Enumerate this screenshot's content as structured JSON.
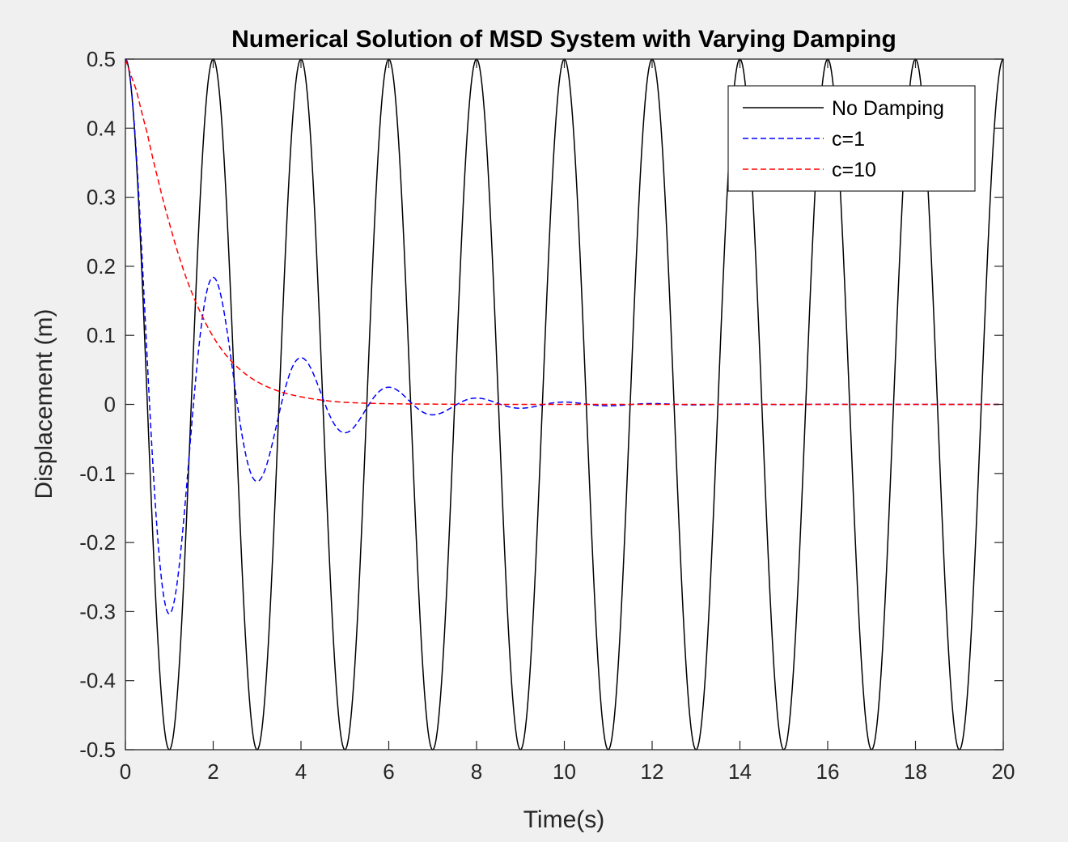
{
  "figure": {
    "background": "#f0f0f0",
    "axes_background": "#ffffff",
    "axis_color": "#262626"
  },
  "chart_data": {
    "type": "line",
    "title": "Numerical Solution of MSD System with Varying Damping",
    "xlabel": "Time(s)",
    "ylabel": "Displacement (m)",
    "xlim": [
      0,
      20
    ],
    "ylim": [
      -0.5,
      0.5
    ],
    "xticks": [
      0,
      2,
      4,
      6,
      8,
      10,
      12,
      14,
      16,
      18,
      20
    ],
    "yticks": [
      -0.5,
      -0.4,
      -0.3,
      -0.2,
      -0.1,
      0,
      0.1,
      0.2,
      0.3,
      0.4,
      0.5
    ],
    "xtick_labels": [
      "0",
      "2",
      "4",
      "6",
      "8",
      "10",
      "12",
      "14",
      "16",
      "18",
      "20"
    ],
    "ytick_labels": [
      "-0.5",
      "-0.4",
      "-0.3",
      "-0.2",
      "-0.1",
      "0",
      "0.1",
      "0.2",
      "0.3",
      "0.4",
      "0.5"
    ],
    "grid": false,
    "legend_position": "top-right",
    "series": [
      {
        "name": "No Damping",
        "color": "#000000",
        "style": "solid",
        "x": [
          0,
          0.5,
          1,
          1.5,
          2,
          2.5,
          3,
          3.5,
          4,
          4.5,
          5,
          5.5,
          6,
          6.5,
          7,
          7.5,
          8,
          8.5,
          9,
          9.5,
          10,
          10.5,
          11,
          11.5,
          12,
          12.5,
          13,
          13.5,
          14,
          14.5,
          15,
          15.5,
          16,
          16.5,
          17,
          17.5,
          18,
          18.5,
          19,
          19.5,
          20
        ],
        "y": [
          0.5,
          0.0,
          -0.5,
          0.0,
          0.5,
          0.0,
          -0.5,
          0.0,
          0.5,
          0.0,
          -0.5,
          0.0,
          0.5,
          0.0,
          -0.5,
          0.0,
          0.5,
          0.0,
          -0.5,
          0.0,
          0.5,
          0.0,
          -0.5,
          0.0,
          0.5,
          0.0,
          -0.5,
          0.0,
          0.5,
          0.0,
          -0.5,
          0.0,
          0.5,
          0.0,
          -0.5,
          0.0,
          0.5,
          0.0,
          -0.5,
          0.0,
          0.46
        ]
      },
      {
        "name": "c=1",
        "color": "#0000ff",
        "style": "dashed",
        "x": [
          0,
          0.5,
          1,
          1.5,
          2,
          2.5,
          3,
          3.5,
          4,
          4.5,
          5,
          5.5,
          6,
          6.5,
          7,
          7.5,
          8,
          8.5,
          9,
          9.5,
          10,
          10.5,
          11,
          11.5,
          12,
          12.5,
          13,
          13.5,
          14,
          14.5,
          15,
          15.5,
          16,
          16.5,
          17,
          17.5,
          18,
          18.5,
          19,
          19.5,
          20
        ],
        "y": [
          0.5,
          0.05,
          -0.3,
          -0.02,
          0.183,
          0.01,
          -0.11,
          -0.005,
          0.067,
          0.003,
          -0.04,
          -0.002,
          0.025,
          0.001,
          -0.015,
          -0.001,
          0.009,
          0.0,
          -0.005,
          0.0,
          0.003,
          0.0,
          -0.002,
          0.0,
          0.001,
          0.0,
          -0.0005,
          0.0,
          0.0003,
          0.0,
          -0.0002,
          0.0,
          0.0001,
          0.0,
          0.0,
          0.0,
          0.0,
          0.0,
          0.0,
          0.0,
          0.0
        ]
      },
      {
        "name": "c=10",
        "color": "#ff0000",
        "style": "dashed",
        "x": [
          0,
          0.25,
          0.5,
          0.75,
          1,
          1.25,
          1.5,
          1.75,
          2,
          2.5,
          3,
          3.5,
          4,
          4.5,
          5,
          6,
          7,
          8,
          10,
          12,
          14,
          16,
          18,
          20
        ],
        "y": [
          0.5,
          0.455,
          0.392,
          0.324,
          0.263,
          0.209,
          0.164,
          0.128,
          0.098,
          0.057,
          0.033,
          0.019,
          0.011,
          0.006,
          0.003,
          0.001,
          0.0004,
          0.0001,
          0.0,
          0.0,
          0.0,
          0.0,
          0.0,
          0.0
        ]
      }
    ]
  }
}
